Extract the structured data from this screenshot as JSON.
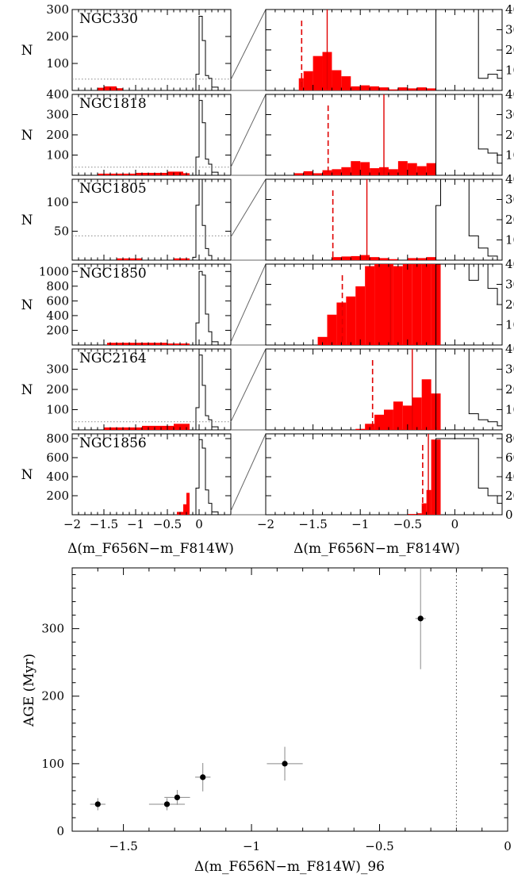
{
  "figure": {
    "histogram_xlabel": "Δ(m_F656N−m_F814W)",
    "age_ylabel": "AGE (Myr)",
    "age_xlabel": "Δ(m_F656N−m_F814W)_96"
  },
  "chart_data": [
    {
      "type": "bar",
      "panel": "left histograms (full range)",
      "xlim": [
        -2,
        0.5
      ],
      "x_ticks": [
        -2,
        -1.5,
        -1,
        -0.5,
        0
      ],
      "ylabel": "N",
      "clusters": [
        {
          "name": "NGC330",
          "ylim": [
            0,
            300
          ],
          "y_ticks": [
            100,
            200,
            300
          ],
          "threshold": 42,
          "black_bins": [
            [
              -0.05,
              0,
              60
            ],
            [
              0,
              0.05,
              275
            ],
            [
              0.05,
              0.1,
              185
            ],
            [
              0.1,
              0.15,
              55
            ],
            [
              0.15,
              0.2,
              45
            ],
            [
              0.2,
              0.3,
              12
            ]
          ],
          "red_bins": [
            [
              -1.6,
              -1.5,
              10
            ],
            [
              -1.5,
              -1.3,
              15
            ],
            [
              -1.3,
              -1.2,
              8
            ]
          ]
        },
        {
          "name": "NGC1818",
          "ylim": [
            0,
            400
          ],
          "y_ticks": [
            100,
            200,
            300,
            400
          ],
          "threshold": 40,
          "black_bins": [
            [
              -0.05,
              0,
              90
            ],
            [
              0,
              0.05,
              370
            ],
            [
              0.05,
              0.1,
              260
            ],
            [
              0.1,
              0.15,
              80
            ],
            [
              0.15,
              0.2,
              55
            ],
            [
              0.2,
              0.3,
              15
            ]
          ],
          "red_bins": [
            [
              -1.6,
              -1.0,
              8
            ],
            [
              -1.0,
              -0.5,
              12
            ],
            [
              -0.5,
              -0.25,
              18
            ],
            [
              -0.25,
              -0.15,
              10
            ]
          ]
        },
        {
          "name": "NGC1805",
          "ylim": [
            0,
            140
          ],
          "y_ticks": [
            50,
            100
          ],
          "threshold": 42,
          "black_bins": [
            [
              -0.1,
              -0.05,
              5
            ],
            [
              -0.05,
              0,
              95
            ],
            [
              0,
              0.05,
              140
            ],
            [
              0.05,
              0.1,
              60
            ],
            [
              0.1,
              0.15,
              20
            ],
            [
              0.15,
              0.2,
              8
            ]
          ],
          "red_bins": [
            [
              -1.3,
              -0.9,
              3
            ],
            [
              -0.4,
              -0.15,
              3
            ]
          ]
        },
        {
          "name": "NGC1850",
          "ylim": [
            0,
            1100
          ],
          "y_ticks": [
            200,
            400,
            600,
            800,
            1000
          ],
          "threshold": 0,
          "black_bins": [
            [
              -0.05,
              0,
              300
            ],
            [
              0,
              0.05,
              1000
            ],
            [
              0.05,
              0.1,
              950
            ],
            [
              0.1,
              0.15,
              420
            ],
            [
              0.15,
              0.2,
              180
            ],
            [
              0.2,
              0.3,
              45
            ]
          ],
          "red_bins": [
            [
              -1.45,
              -0.5,
              30
            ],
            [
              -0.5,
              -0.15,
              20
            ]
          ]
        },
        {
          "name": "NGC2164",
          "ylim": [
            0,
            400
          ],
          "y_ticks": [
            100,
            200,
            300
          ],
          "threshold": 40,
          "black_bins": [
            [
              -0.05,
              0,
              110
            ],
            [
              0,
              0.05,
              370
            ],
            [
              0.05,
              0.1,
              220
            ],
            [
              0.1,
              0.15,
              70
            ],
            [
              0.15,
              0.2,
              50
            ],
            [
              0.2,
              0.3,
              15
            ]
          ],
          "red_bins": [
            [
              -1.5,
              -0.9,
              12
            ],
            [
              -0.9,
              -0.4,
              20
            ],
            [
              -0.4,
              -0.15,
              30
            ]
          ]
        },
        {
          "name": "NGC1856",
          "ylim": [
            0,
            850
          ],
          "y_ticks": [
            200,
            400,
            600,
            800
          ],
          "threshold": 0,
          "black_bins": [
            [
              -0.05,
              0,
              280
            ],
            [
              0,
              0.05,
              790
            ],
            [
              0.05,
              0.1,
              700
            ],
            [
              0.1,
              0.15,
              260
            ],
            [
              0.15,
              0.2,
              120
            ],
            [
              0.2,
              0.3,
              30
            ]
          ],
          "red_bins": [
            [
              -0.35,
              -0.25,
              30
            ],
            [
              -0.25,
              -0.2,
              110
            ],
            [
              -0.2,
              -0.15,
              230
            ]
          ]
        }
      ]
    },
    {
      "type": "bar",
      "panel": "right histograms (zoom)",
      "xlim": [
        -2,
        0.5
      ],
      "x_ticks": [
        -2,
        -1.5,
        -1,
        -0.5,
        0
      ],
      "ylim": [
        0,
        400
      ],
      "y_ticks": [
        100,
        200,
        300,
        400
      ],
      "right_axis_ticks": [
        "100",
        "200",
        "300",
        "400"
      ],
      "edge": -0.2,
      "clusters": [
        {
          "name": "NGC330",
          "dashed": -1.62,
          "solid": -1.35,
          "black_bins": [
            [
              -0.2,
              0.25,
              400
            ],
            [
              0.25,
              0.35,
              60
            ],
            [
              0.35,
              0.45,
              80
            ],
            [
              0.45,
              0.5,
              60
            ]
          ],
          "red_bins": [
            [
              -1.65,
              -1.6,
              60
            ],
            [
              -1.6,
              -1.5,
              95
            ],
            [
              -1.5,
              -1.4,
              170
            ],
            [
              -1.4,
              -1.3,
              190
            ],
            [
              -1.3,
              -1.2,
              100
            ],
            [
              -1.2,
              -1.1,
              70
            ],
            [
              -1.1,
              -1.0,
              20
            ],
            [
              -1.0,
              -0.9,
              25
            ],
            [
              -0.9,
              -0.8,
              20
            ],
            [
              -0.8,
              -0.7,
              15
            ],
            [
              -0.7,
              -0.6,
              5
            ],
            [
              -0.6,
              -0.5,
              15
            ],
            [
              -0.5,
              -0.4,
              10
            ],
            [
              -0.4,
              -0.3,
              15
            ],
            [
              -0.3,
              -0.2,
              10
            ]
          ]
        },
        {
          "name": "NGC1818",
          "dashed": -1.34,
          "solid": -0.75,
          "black_bins": [
            [
              -0.2,
              0.25,
              400
            ],
            [
              0.25,
              0.35,
              130
            ],
            [
              0.35,
              0.45,
              110
            ],
            [
              0.45,
              0.5,
              60
            ]
          ],
          "red_bins": [
            [
              -1.7,
              -1.6,
              10
            ],
            [
              -1.6,
              -1.5,
              20
            ],
            [
              -1.5,
              -1.4,
              10
            ],
            [
              -1.4,
              -1.3,
              25
            ],
            [
              -1.3,
              -1.2,
              30
            ],
            [
              -1.2,
              -1.1,
              40
            ],
            [
              -1.1,
              -1.0,
              70
            ],
            [
              -1.0,
              -0.9,
              65
            ],
            [
              -0.9,
              -0.8,
              35
            ],
            [
              -0.8,
              -0.7,
              40
            ],
            [
              -0.7,
              -0.6,
              30
            ],
            [
              -0.6,
              -0.5,
              70
            ],
            [
              -0.5,
              -0.4,
              60
            ],
            [
              -0.4,
              -0.3,
              45
            ],
            [
              -0.3,
              -0.2,
              60
            ]
          ]
        },
        {
          "name": "NGC1805",
          "dashed": -1.29,
          "solid": -0.93,
          "black_bins": [
            [
              -0.2,
              -0.15,
              270
            ],
            [
              -0.15,
              -0.05,
              400
            ],
            [
              -0.05,
              0.05,
              400
            ],
            [
              0.05,
              0.15,
              400
            ],
            [
              0.15,
              0.25,
              120
            ],
            [
              0.25,
              0.35,
              60
            ],
            [
              0.35,
              0.45,
              20
            ]
          ],
          "red_bins": [
            [
              -1.3,
              -1.2,
              15
            ],
            [
              -1.2,
              -1.1,
              18
            ],
            [
              -1.1,
              -1.0,
              20
            ],
            [
              -1.0,
              -0.9,
              25
            ],
            [
              -0.9,
              -0.8,
              15
            ],
            [
              -0.8,
              -0.7,
              10
            ],
            [
              -0.7,
              -0.6,
              5
            ],
            [
              -0.5,
              -0.4,
              10
            ],
            [
              -0.4,
              -0.3,
              10
            ],
            [
              -0.3,
              -0.2,
              15
            ]
          ]
        },
        {
          "name": "NGC1850",
          "dashed": -1.19,
          "solid": -0.68,
          "black_bins": [
            [
              -0.2,
              0.15,
              400
            ],
            [
              0.15,
              0.25,
              320
            ],
            [
              0.25,
              0.35,
              400
            ],
            [
              0.35,
              0.45,
              280
            ],
            [
              0.45,
              0.5,
              200
            ]
          ],
          "red_bins": [
            [
              -1.45,
              -1.35,
              40
            ],
            [
              -1.35,
              -1.25,
              150
            ],
            [
              -1.25,
              -1.15,
              210
            ],
            [
              -1.15,
              -1.05,
              240
            ],
            [
              -1.05,
              -0.95,
              290
            ],
            [
              -0.95,
              -0.85,
              390
            ],
            [
              -0.85,
              -0.75,
              980
            ],
            [
              -0.75,
              -0.65,
              980
            ],
            [
              -0.65,
              -0.55,
              390
            ],
            [
              -0.55,
              -0.45,
              760
            ],
            [
              -0.45,
              -0.35,
              640
            ],
            [
              -0.35,
              -0.25,
              580
            ],
            [
              -0.25,
              -0.15,
              640
            ]
          ]
        },
        {
          "name": "NGC2164",
          "dashed": -0.87,
          "solid": -0.45,
          "black_bins": [
            [
              -0.2,
              0.15,
              400
            ],
            [
              0.15,
              0.25,
              80
            ],
            [
              0.25,
              0.35,
              50
            ],
            [
              0.35,
              0.45,
              40
            ],
            [
              0.45,
              0.5,
              20
            ]
          ],
          "red_bins": [
            [
              -1.05,
              -0.95,
              5
            ],
            [
              -0.95,
              -0.85,
              30
            ],
            [
              -0.85,
              -0.75,
              75
            ],
            [
              -0.75,
              -0.65,
              100
            ],
            [
              -0.65,
              -0.55,
              140
            ],
            [
              -0.55,
              -0.45,
              120
            ],
            [
              -0.45,
              -0.35,
              160
            ],
            [
              -0.35,
              -0.25,
              250
            ],
            [
              -0.25,
              -0.15,
              180
            ]
          ]
        },
        {
          "name": "NGC1856",
          "dashed": -0.34,
          "solid": -0.28,
          "black_bins": [
            [
              -0.2,
              0.25,
              800
            ],
            [
              0.25,
              0.35,
              280
            ],
            [
              0.35,
              0.45,
              200
            ],
            [
              0.45,
              0.5,
              120
            ]
          ],
          "red_bins": [
            [
              -0.5,
              -0.4,
              8
            ],
            [
              -0.4,
              -0.35,
              15
            ],
            [
              -0.35,
              -0.3,
              120
            ],
            [
              -0.3,
              -0.25,
              260
            ],
            [
              -0.25,
              -0.2,
              790
            ],
            [
              -0.2,
              -0.15,
              790
            ]
          ]
        }
      ],
      "last_panel_ylim": [
        0,
        850
      ],
      "last_panel_ticks": [
        "0",
        "200",
        "400",
        "600",
        "800"
      ]
    },
    {
      "type": "scatter",
      "panel": "age vs color spread",
      "xlim": [
        -1.7,
        0
      ],
      "x_ticks": [
        -1.5,
        -1,
        -0.5,
        0
      ],
      "ylim": [
        0,
        390
      ],
      "y_ticks": [
        0,
        100,
        200,
        300
      ],
      "ylabel": "AGE (Myr)",
      "xlabel": "Δ(m_F656N−m_F814W)_96",
      "vertical_line": -0.2,
      "points": [
        {
          "x": -1.6,
          "y": 40,
          "xerr": 0.03,
          "yerr": 9
        },
        {
          "x": -1.33,
          "y": 40,
          "xerr": 0.07,
          "yerr": 9
        },
        {
          "x": -1.29,
          "y": 50,
          "xerr": 0.05,
          "yerr": 11
        },
        {
          "x": -1.19,
          "y": 80,
          "xerr": 0.03,
          "yerr": 21
        },
        {
          "x": -0.87,
          "y": 100,
          "xerr": 0.07,
          "yerr": 25
        },
        {
          "x": -0.34,
          "y": 315,
          "xerr": 0.02,
          "yerr": 75
        }
      ]
    }
  ]
}
